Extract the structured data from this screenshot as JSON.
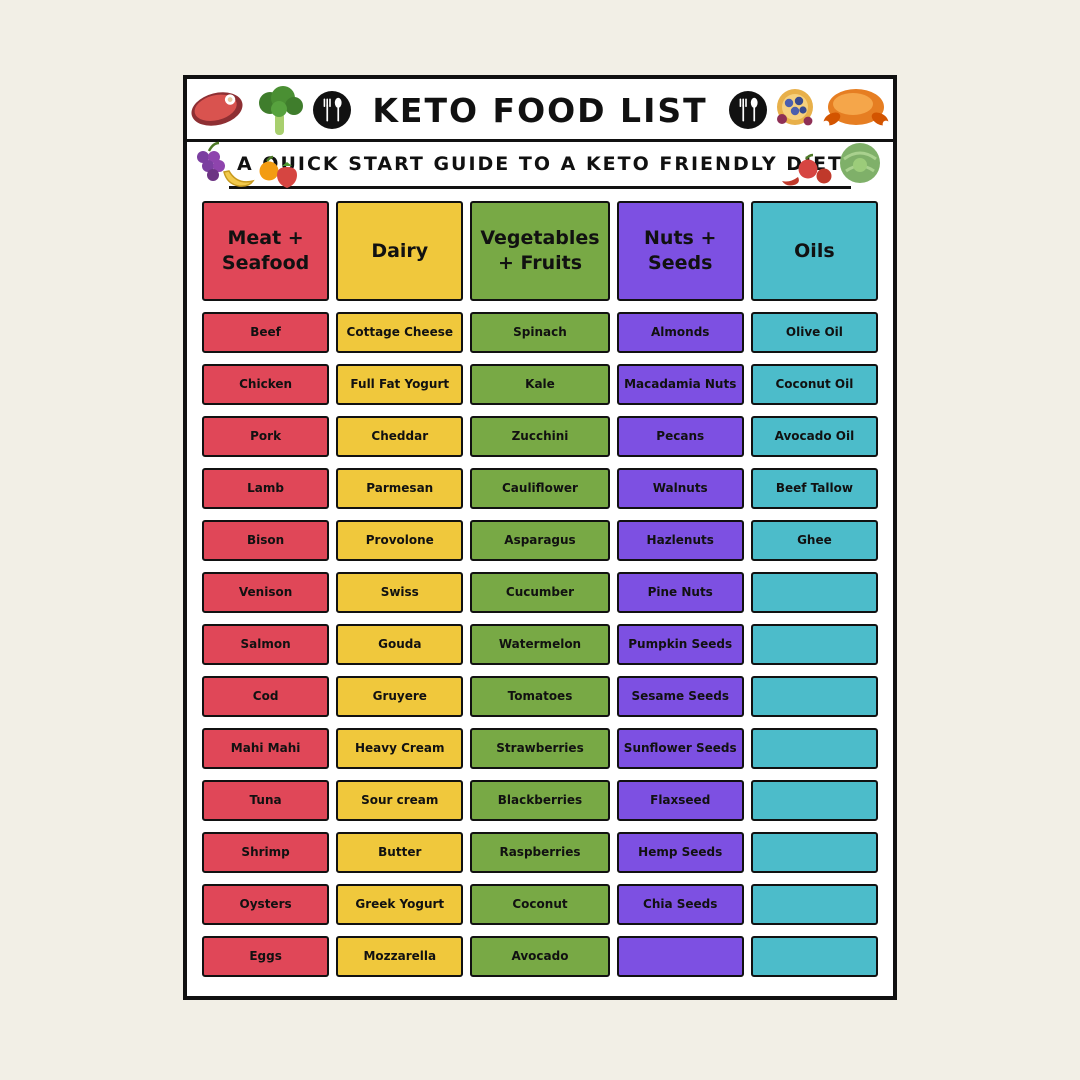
{
  "page": {
    "title": "KETO FOOD LIST",
    "subtitle": "A QUICK START GUIDE TO A KETO FRIENDLY DIET"
  },
  "colors": {
    "background": "#f2efe6",
    "card": "#ffffff",
    "border": "#111111",
    "meat": "#e04758",
    "dairy": "#f0c83c",
    "vegetables": "#78a945",
    "nuts": "#7d50e2",
    "oils": "#4cbcca"
  },
  "icons": {
    "header_left": "fork-spoon-icon",
    "header_right": "fork-spoon-icon",
    "corner_top_left": [
      "ham-icon",
      "broccoli-icon",
      "grapes-icon",
      "banana-icon",
      "orange-icon",
      "strawberry-icon"
    ],
    "corner_top_right": [
      "berry-pie-icon",
      "roast-turkey-icon",
      "peppers-icon",
      "cabbage-icon"
    ]
  },
  "columns": [
    {
      "slug": "meat-seafood",
      "header": "Meat + Seafood",
      "color": "#e04758",
      "items": [
        "Beef",
        "Chicken",
        "Pork",
        "Lamb",
        "Bison",
        "Venison",
        "Salmon",
        "Cod",
        "Mahi Mahi",
        "Tuna",
        "Shrimp",
        "Oysters",
        "Eggs"
      ]
    },
    {
      "slug": "dairy",
      "header": "Dairy",
      "color": "#f0c83c",
      "items": [
        "Cottage Cheese",
        "Full Fat Yogurt",
        "Cheddar",
        "Parmesan",
        "Provolone",
        "Swiss",
        "Gouda",
        "Gruyere",
        "Heavy Cream",
        "Sour cream",
        "Butter",
        "Greek Yogurt",
        "Mozzarella"
      ]
    },
    {
      "slug": "vegetables-fruits",
      "header": "Vegetables + Fruits",
      "color": "#78a945",
      "items": [
        "Spinach",
        "Kale",
        "Zucchini",
        "Cauliflower",
        "Asparagus",
        "Cucumber",
        "Watermelon",
        "Tomatoes",
        "Strawberries",
        "Blackberries",
        "Raspberries",
        "Coconut",
        "Avocado"
      ]
    },
    {
      "slug": "nuts-seeds",
      "header": "Nuts + Seeds",
      "color": "#7d50e2",
      "items": [
        "Almonds",
        "Macadamia Nuts",
        "Pecans",
        "Walnuts",
        "Hazlenuts",
        "Pine Nuts",
        "Pumpkin Seeds",
        "Sesame Seeds",
        "Sunflower Seeds",
        "Flaxseed",
        "Hemp Seeds",
        "Chia Seeds",
        ""
      ]
    },
    {
      "slug": "oils",
      "header": "Oils",
      "color": "#4cbcca",
      "items": [
        "Olive Oil",
        "Coconut Oil",
        "Avocado Oil",
        "Beef Tallow",
        "Ghee",
        "",
        "",
        "",
        "",
        "",
        "",
        "",
        ""
      ]
    }
  ]
}
